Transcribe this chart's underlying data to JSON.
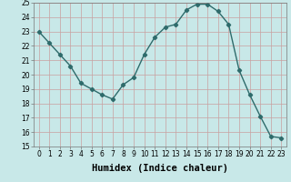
{
  "title": "",
  "xlabel": "Humidex (Indice chaleur)",
  "x": [
    0,
    1,
    2,
    3,
    4,
    5,
    6,
    7,
    8,
    9,
    10,
    11,
    12,
    13,
    14,
    15,
    16,
    17,
    18,
    19,
    20,
    21,
    22,
    23
  ],
  "y": [
    23.0,
    22.2,
    21.4,
    20.6,
    19.4,
    19.0,
    18.6,
    18.3,
    19.3,
    19.8,
    21.4,
    22.6,
    23.3,
    23.5,
    24.5,
    24.9,
    24.9,
    24.4,
    23.5,
    20.3,
    18.6,
    17.1,
    15.7,
    15.6
  ],
  "ylim": [
    15,
    25
  ],
  "xlim": [
    -0.5,
    23.5
  ],
  "line_color": "#2e6b6b",
  "marker": "D",
  "marker_size": 2.2,
  "bg_color": "#c8e8e8",
  "grid_color": "#c8a0a0",
  "axis_bg": "#c8e8e8",
  "yticks": [
    15,
    16,
    17,
    18,
    19,
    20,
    21,
    22,
    23,
    24,
    25
  ],
  "xticks": [
    0,
    1,
    2,
    3,
    4,
    5,
    6,
    7,
    8,
    9,
    10,
    11,
    12,
    13,
    14,
    15,
    16,
    17,
    18,
    19,
    20,
    21,
    22,
    23
  ],
  "tick_fontsize": 5.5,
  "xlabel_fontsize": 7.5,
  "line_width": 1.0
}
